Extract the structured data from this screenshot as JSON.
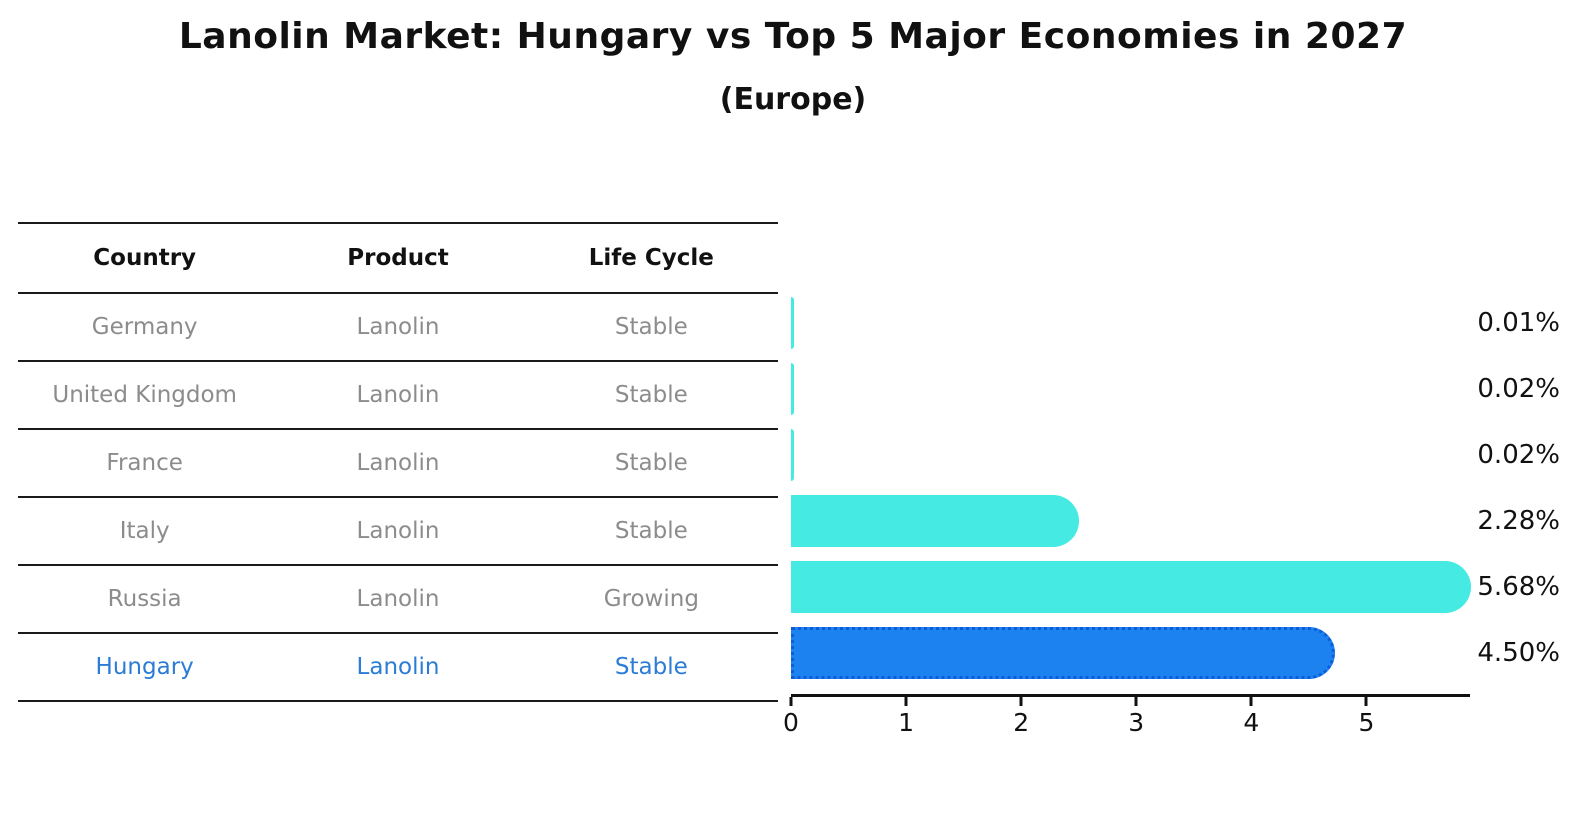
{
  "title": "Lanolin Market: Hungary vs Top 5 Major Economies in 2027",
  "subtitle": "(Europe)",
  "colors": {
    "bar": "#45eae2",
    "highlight_bar": "#1b82f0",
    "highlight_edge": "#0d5cd8",
    "text": "#111111",
    "muted_text": "#8c8c8c",
    "highlight_text": "#2b7cd6"
  },
  "table": {
    "headers": [
      "Country",
      "Product",
      "Life Cycle"
    ],
    "rows": [
      {
        "country": "Germany",
        "product": "Lanolin",
        "life_cycle": "Stable",
        "highlight": false
      },
      {
        "country": "United Kingdom",
        "product": "Lanolin",
        "life_cycle": "Stable",
        "highlight": false
      },
      {
        "country": "France",
        "product": "Lanolin",
        "life_cycle": "Stable",
        "highlight": false
      },
      {
        "country": "Italy",
        "product": "Lanolin",
        "life_cycle": "Stable",
        "highlight": false
      },
      {
        "country": "Russia",
        "product": "Lanolin",
        "life_cycle": "Growing",
        "highlight": false
      },
      {
        "country": "Hungary",
        "product": "Lanolin",
        "life_cycle": "Stable",
        "highlight": true
      }
    ]
  },
  "chart_data": {
    "type": "bar",
    "orientation": "horizontal",
    "title": "Lanolin Market: Hungary vs Top 5 Major Economies in 2027 (Europe)",
    "xlabel": "",
    "ylabel": "",
    "categories": [
      "Germany",
      "United Kingdom",
      "France",
      "Italy",
      "Russia",
      "Hungary"
    ],
    "values": [
      0.01,
      0.02,
      0.02,
      2.28,
      5.68,
      4.5
    ],
    "value_labels": [
      "0.01%",
      "0.02%",
      "0.02%",
      "2.28%",
      "5.68%",
      "4.50%"
    ],
    "highlight_category": "Hungary",
    "xlim": [
      0,
      5.9
    ],
    "xticks": [
      0,
      1,
      2,
      3,
      4,
      5
    ],
    "grid": false,
    "legend": false
  }
}
